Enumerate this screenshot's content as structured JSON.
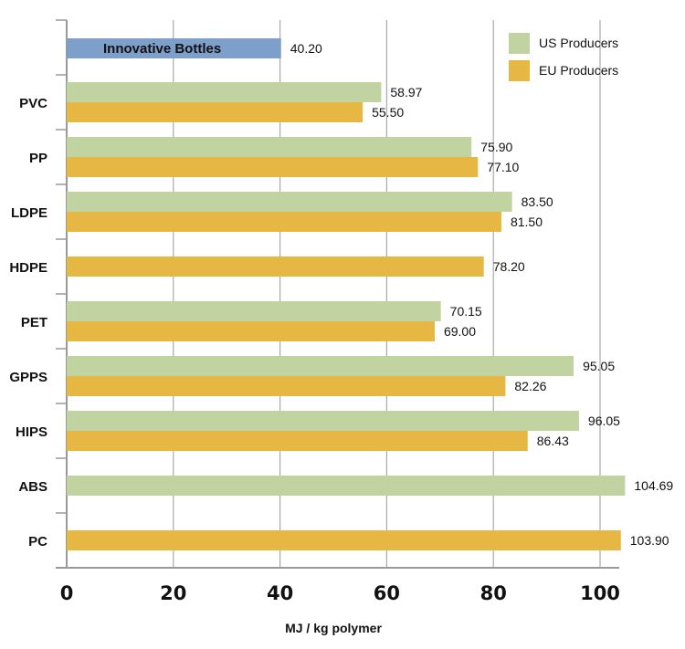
{
  "chart_data": {
    "type": "bar",
    "orientation": "horizontal",
    "xlabel": "MJ / kg polymer",
    "xlim": [
      0,
      105
    ],
    "xticks": [
      "0",
      "20",
      "40",
      "60",
      "80",
      "100"
    ],
    "grid": true,
    "legend_position": "top-right",
    "highlight": {
      "name": "Innovative Bottles",
      "value": 40.2,
      "label": "40.20",
      "color": "#7f9fcb"
    },
    "categories": [
      "PVC",
      "PP",
      "LDPE",
      "HDPE",
      "PET",
      "GPPS",
      "HIPS",
      "ABS",
      "PC"
    ],
    "series": [
      {
        "name": "US Producers",
        "color": "#c0d3a0",
        "values": [
          58.97,
          75.9,
          83.5,
          null,
          70.15,
          95.05,
          96.05,
          104.69,
          null
        ],
        "labels": [
          "58.97",
          "75.90",
          "83.50",
          null,
          "70.15",
          "95.05",
          "96.05",
          "104.69",
          null
        ]
      },
      {
        "name": "EU Producers",
        "color": "#e6b843",
        "values": [
          55.5,
          77.1,
          81.5,
          78.2,
          69.0,
          82.26,
          86.43,
          null,
          103.9
        ],
        "labels": [
          "55.50",
          "77.10",
          "81.50",
          "78.20",
          "69.00",
          "82.26",
          "86.43",
          null,
          "103.90"
        ]
      }
    ]
  }
}
